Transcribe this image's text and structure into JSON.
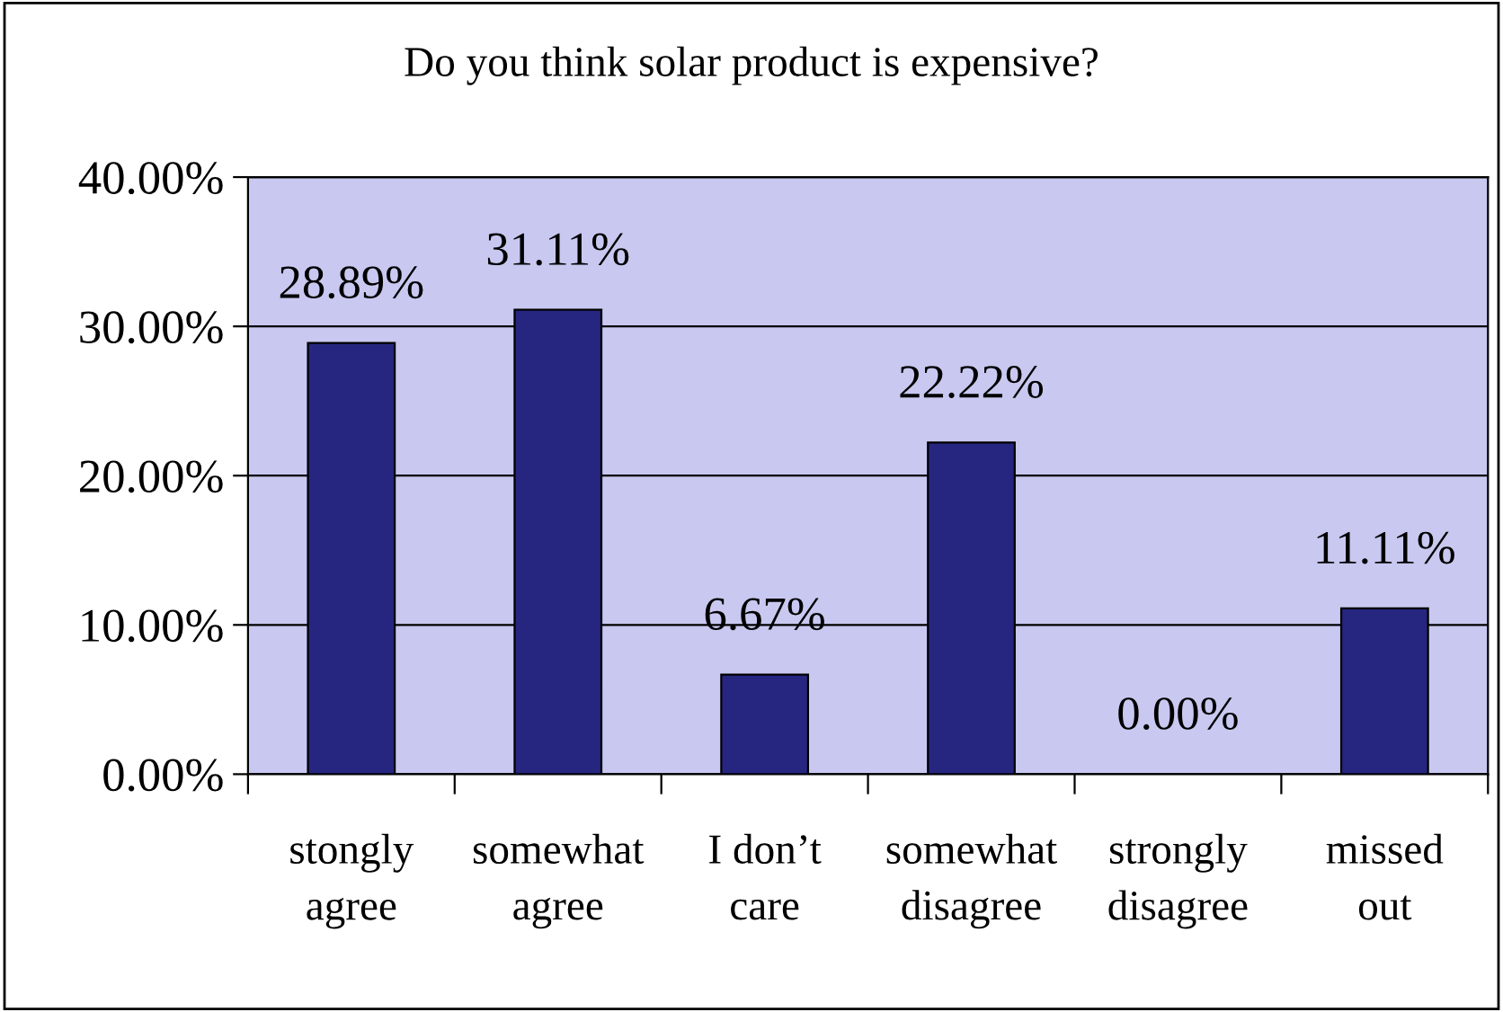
{
  "chart_data": {
    "type": "bar",
    "title": "Do you think solar product is expensive?",
    "categories": [
      "stongly\nagree",
      "somewhat\nagree",
      "I don’t\ncare",
      "somewhat\ndisagree",
      "strongly\ndisagree",
      "missed\nout"
    ],
    "values": [
      28.89,
      31.11,
      6.67,
      22.22,
      0.0,
      11.11
    ],
    "color": "#262680",
    "value_labels": [
      "28.89%",
      "31.11%",
      "6.67%",
      "22.22%",
      "0.00%",
      "11.11%"
    ],
    "ylim": [
      0,
      40
    ],
    "yticks": [
      {
        "value": 0,
        "label": "0.00%"
      },
      {
        "value": 10,
        "label": "10.00%"
      },
      {
        "value": 20,
        "label": "20.00%"
      },
      {
        "value": 30,
        "label": "30.00%"
      },
      {
        "value": 40,
        "label": "40.00%"
      }
    ],
    "grid": "y",
    "legend": false
  }
}
